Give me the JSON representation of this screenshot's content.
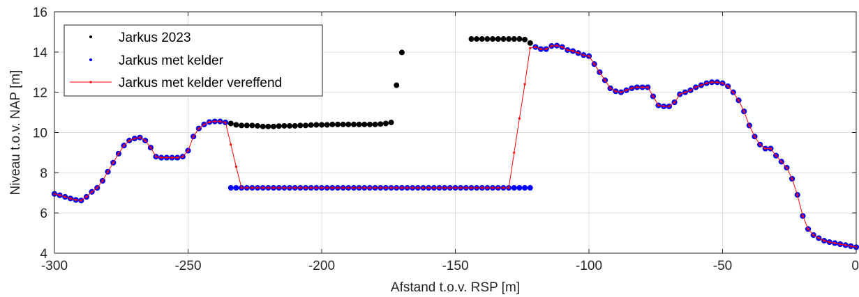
{
  "chart_data": {
    "type": "scatter",
    "xlabel": "Afstand t.o.v. RSP [m]",
    "ylabel": "Niveau t.o.v. NAP [m]",
    "xlim": [
      -300,
      0
    ],
    "ylim": [
      4,
      16
    ],
    "xticks": [
      -300,
      -250,
      -200,
      -150,
      -100,
      -50,
      0
    ],
    "yticks": [
      4,
      6,
      8,
      10,
      12,
      14,
      16
    ],
    "grid": true,
    "legend_position": "top-left",
    "series": [
      {
        "name": "Jarkus 2023",
        "color": "#000000",
        "marker": "dot",
        "x": [
          -300,
          -298,
          -296,
          -294,
          -292,
          -290,
          -288,
          -286,
          -284,
          -282,
          -280,
          -278,
          -276,
          -274,
          -272,
          -270,
          -268,
          -266,
          -264,
          -262,
          -260,
          -258,
          -256,
          -254,
          -252,
          -250,
          -248,
          -246,
          -244,
          -242,
          -240,
          -238,
          -236,
          -234,
          -232,
          -230,
          -228,
          -226,
          -224,
          -222,
          -220,
          -218,
          -216,
          -214,
          -212,
          -210,
          -208,
          -206,
          -204,
          -202,
          -200,
          -198,
          -196,
          -194,
          -192,
          -190,
          -188,
          -186,
          -184,
          -182,
          -180,
          -178,
          -176,
          -174,
          -172,
          -170,
          -144,
          -142,
          -140,
          -138,
          -136,
          -134,
          -132,
          -130,
          -128,
          -126,
          -124,
          -122,
          -120,
          -118,
          -116,
          -114,
          -112,
          -110,
          -108,
          -106,
          -104,
          -102,
          -100,
          -98,
          -96,
          -94,
          -92,
          -90,
          -88,
          -86,
          -84,
          -82,
          -80,
          -78,
          -76,
          -74,
          -72,
          -70,
          -68,
          -66,
          -64,
          -62,
          -60,
          -58,
          -56,
          -54,
          -52,
          -50,
          -48,
          -46,
          -44,
          -42,
          -40,
          -38,
          -36,
          -34,
          -32,
          -30,
          -28,
          -26,
          -24,
          -22,
          -20,
          -18,
          -16,
          -14,
          -12,
          -10,
          -8,
          -6,
          -4,
          -2,
          0
        ],
        "y": [
          6.95,
          6.88,
          6.8,
          6.72,
          6.65,
          6.62,
          6.8,
          7.05,
          7.25,
          7.6,
          8.05,
          8.5,
          8.95,
          9.35,
          9.6,
          9.7,
          9.75,
          9.6,
          9.25,
          8.8,
          8.75,
          8.75,
          8.75,
          8.75,
          8.8,
          9.1,
          9.8,
          10.2,
          10.4,
          10.52,
          10.55,
          10.55,
          10.5,
          10.45,
          10.38,
          10.35,
          10.35,
          10.35,
          10.33,
          10.3,
          10.3,
          10.3,
          10.32,
          10.33,
          10.33,
          10.33,
          10.35,
          10.35,
          10.37,
          10.38,
          10.38,
          10.38,
          10.4,
          10.4,
          10.4,
          10.4,
          10.4,
          10.4,
          10.4,
          10.4,
          10.4,
          10.42,
          10.45,
          10.5,
          12.35,
          13.98,
          14.65,
          14.65,
          14.65,
          14.65,
          14.65,
          14.65,
          14.65,
          14.65,
          14.65,
          14.65,
          14.62,
          14.45,
          14.25,
          14.15,
          14.15,
          14.3,
          14.32,
          14.25,
          14.1,
          14.05,
          13.95,
          13.85,
          13.8,
          13.4,
          13.0,
          12.6,
          12.2,
          12.05,
          12.0,
          12.1,
          12.2,
          12.25,
          12.25,
          12.25,
          11.8,
          11.35,
          11.3,
          11.3,
          11.5,
          11.9,
          12.0,
          12.1,
          12.25,
          12.35,
          12.45,
          12.5,
          12.5,
          12.45,
          12.3,
          12.0,
          11.6,
          11.05,
          10.35,
          9.8,
          9.4,
          9.2,
          9.2,
          8.85,
          8.55,
          8.25,
          7.7,
          6.9,
          5.85,
          5.2,
          4.9,
          4.75,
          4.62,
          4.55,
          4.5,
          4.45,
          4.4,
          4.35,
          4.3
        ]
      },
      {
        "name": "Jarkus met kelder",
        "color": "#0000ff",
        "marker": "dot",
        "x": [
          -300,
          -298,
          -296,
          -294,
          -292,
          -290,
          -288,
          -286,
          -284,
          -282,
          -280,
          -278,
          -276,
          -274,
          -272,
          -270,
          -268,
          -266,
          -264,
          -262,
          -260,
          -258,
          -256,
          -254,
          -252,
          -250,
          -248,
          -246,
          -244,
          -242,
          -240,
          -238,
          -236,
          -234,
          -232,
          -230,
          -228,
          -226,
          -224,
          -222,
          -220,
          -218,
          -216,
          -214,
          -212,
          -210,
          -208,
          -206,
          -204,
          -202,
          -200,
          -198,
          -196,
          -194,
          -192,
          -190,
          -188,
          -186,
          -184,
          -182,
          -180,
          -178,
          -176,
          -174,
          -172,
          -170,
          -168,
          -166,
          -164,
          -162,
          -160,
          -158,
          -156,
          -154,
          -152,
          -150,
          -148,
          -146,
          -144,
          -142,
          -140,
          -138,
          -136,
          -134,
          -132,
          -130,
          -128,
          -126,
          -124,
          -122,
          -120,
          -118,
          -116,
          -114,
          -112,
          -110,
          -108,
          -106,
          -104,
          -102,
          -100,
          -98,
          -96,
          -94,
          -92,
          -90,
          -88,
          -86,
          -84,
          -82,
          -80,
          -78,
          -76,
          -74,
          -72,
          -70,
          -68,
          -66,
          -64,
          -62,
          -60,
          -58,
          -56,
          -54,
          -52,
          -50,
          -48,
          -46,
          -44,
          -42,
          -40,
          -38,
          -36,
          -34,
          -32,
          -30,
          -28,
          -26,
          -24,
          -22,
          -20,
          -18,
          -16,
          -14,
          -12,
          -10,
          -8,
          -6,
          -4,
          -2,
          0
        ],
        "y": [
          6.95,
          6.88,
          6.8,
          6.72,
          6.65,
          6.62,
          6.8,
          7.05,
          7.25,
          7.6,
          8.05,
          8.5,
          8.95,
          9.35,
          9.6,
          9.7,
          9.75,
          9.6,
          9.25,
          8.8,
          8.75,
          8.75,
          8.75,
          8.75,
          8.8,
          9.1,
          9.8,
          10.2,
          10.4,
          10.52,
          10.55,
          10.55,
          10.5,
          7.25,
          7.25,
          7.25,
          7.25,
          7.25,
          7.25,
          7.25,
          7.25,
          7.25,
          7.25,
          7.25,
          7.25,
          7.25,
          7.25,
          7.25,
          7.25,
          7.25,
          7.25,
          7.25,
          7.25,
          7.25,
          7.25,
          7.25,
          7.25,
          7.25,
          7.25,
          7.25,
          7.25,
          7.25,
          7.25,
          7.25,
          7.25,
          7.25,
          7.25,
          7.25,
          7.25,
          7.25,
          7.25,
          7.25,
          7.25,
          7.25,
          7.25,
          7.25,
          7.25,
          7.25,
          7.25,
          7.25,
          7.25,
          7.25,
          7.25,
          7.25,
          7.25,
          7.25,
          7.25,
          7.25,
          7.25,
          7.25,
          14.25,
          14.15,
          14.15,
          14.3,
          14.32,
          14.25,
          14.1,
          14.05,
          13.95,
          13.85,
          13.8,
          13.4,
          13.0,
          12.6,
          12.2,
          12.05,
          12.0,
          12.1,
          12.2,
          12.25,
          12.25,
          12.25,
          11.8,
          11.35,
          11.3,
          11.3,
          11.5,
          11.9,
          12.0,
          12.1,
          12.25,
          12.35,
          12.45,
          12.5,
          12.5,
          12.45,
          12.3,
          12.0,
          11.6,
          11.05,
          10.35,
          9.8,
          9.4,
          9.2,
          9.2,
          8.85,
          8.55,
          8.25,
          7.7,
          6.9,
          5.85,
          5.2,
          4.9,
          4.75,
          4.62,
          4.55,
          4.5,
          4.45,
          4.4,
          4.35,
          4.3
        ]
      },
      {
        "name": "Jarkus met kelder vereffend",
        "color": "#ff0000",
        "marker": "line-dot",
        "x": [
          -300,
          -298,
          -296,
          -294,
          -292,
          -290,
          -288,
          -286,
          -284,
          -282,
          -280,
          -278,
          -276,
          -274,
          -272,
          -270,
          -268,
          -266,
          -264,
          -262,
          -260,
          -258,
          -256,
          -254,
          -252,
          -250,
          -248,
          -246,
          -244,
          -242,
          -240,
          -238,
          -236,
          -234,
          -232,
          -230,
          -228,
          -226,
          -224,
          -222,
          -220,
          -218,
          -216,
          -214,
          -212,
          -210,
          -208,
          -206,
          -204,
          -202,
          -200,
          -198,
          -196,
          -194,
          -192,
          -190,
          -188,
          -186,
          -184,
          -182,
          -180,
          -178,
          -176,
          -174,
          -172,
          -170,
          -168,
          -166,
          -164,
          -162,
          -160,
          -158,
          -156,
          -154,
          -152,
          -150,
          -148,
          -146,
          -144,
          -142,
          -140,
          -138,
          -136,
          -134,
          -132,
          -130,
          -128,
          -126,
          -124,
          -122,
          -120,
          -118,
          -116,
          -114,
          -112,
          -110,
          -108,
          -106,
          -104,
          -102,
          -100,
          -98,
          -96,
          -94,
          -92,
          -90,
          -88,
          -86,
          -84,
          -82,
          -80,
          -78,
          -76,
          -74,
          -72,
          -70,
          -68,
          -66,
          -64,
          -62,
          -60,
          -58,
          -56,
          -54,
          -52,
          -50,
          -48,
          -46,
          -44,
          -42,
          -40,
          -38,
          -36,
          -34,
          -32,
          -30,
          -28,
          -26,
          -24,
          -22,
          -20,
          -18,
          -16,
          -14,
          -12,
          -10,
          -8,
          -6,
          -4,
          -2,
          0
        ],
        "y": [
          6.95,
          6.88,
          6.8,
          6.72,
          6.65,
          6.62,
          6.8,
          7.05,
          7.25,
          7.6,
          8.05,
          8.5,
          8.95,
          9.35,
          9.6,
          9.7,
          9.75,
          9.6,
          9.25,
          8.8,
          8.75,
          8.75,
          8.75,
          8.75,
          8.8,
          9.1,
          9.8,
          10.2,
          10.4,
          10.52,
          10.55,
          10.55,
          10.5,
          9.4,
          8.3,
          7.25,
          7.25,
          7.25,
          7.25,
          7.25,
          7.25,
          7.25,
          7.25,
          7.25,
          7.25,
          7.25,
          7.25,
          7.25,
          7.25,
          7.25,
          7.25,
          7.25,
          7.25,
          7.25,
          7.25,
          7.25,
          7.25,
          7.25,
          7.25,
          7.25,
          7.25,
          7.25,
          7.25,
          7.25,
          7.25,
          7.25,
          7.25,
          7.25,
          7.25,
          7.25,
          7.25,
          7.25,
          7.25,
          7.25,
          7.25,
          7.25,
          7.25,
          7.25,
          7.25,
          7.25,
          7.25,
          7.25,
          7.25,
          7.25,
          7.25,
          7.25,
          9.0,
          10.7,
          12.4,
          14.2,
          14.25,
          14.15,
          14.15,
          14.3,
          14.32,
          14.25,
          14.1,
          14.05,
          13.95,
          13.85,
          13.8,
          13.4,
          13.0,
          12.6,
          12.2,
          12.05,
          12.0,
          12.1,
          12.2,
          12.25,
          12.25,
          12.25,
          11.8,
          11.35,
          11.3,
          11.3,
          11.5,
          11.9,
          12.0,
          12.1,
          12.25,
          12.35,
          12.45,
          12.5,
          12.5,
          12.45,
          12.3,
          12.0,
          11.6,
          11.05,
          10.35,
          9.8,
          9.4,
          9.2,
          9.2,
          8.85,
          8.55,
          8.25,
          7.7,
          6.9,
          5.85,
          5.2,
          4.9,
          4.75,
          4.62,
          4.55,
          4.5,
          4.45,
          4.4,
          4.35,
          4.3
        ]
      }
    ]
  }
}
